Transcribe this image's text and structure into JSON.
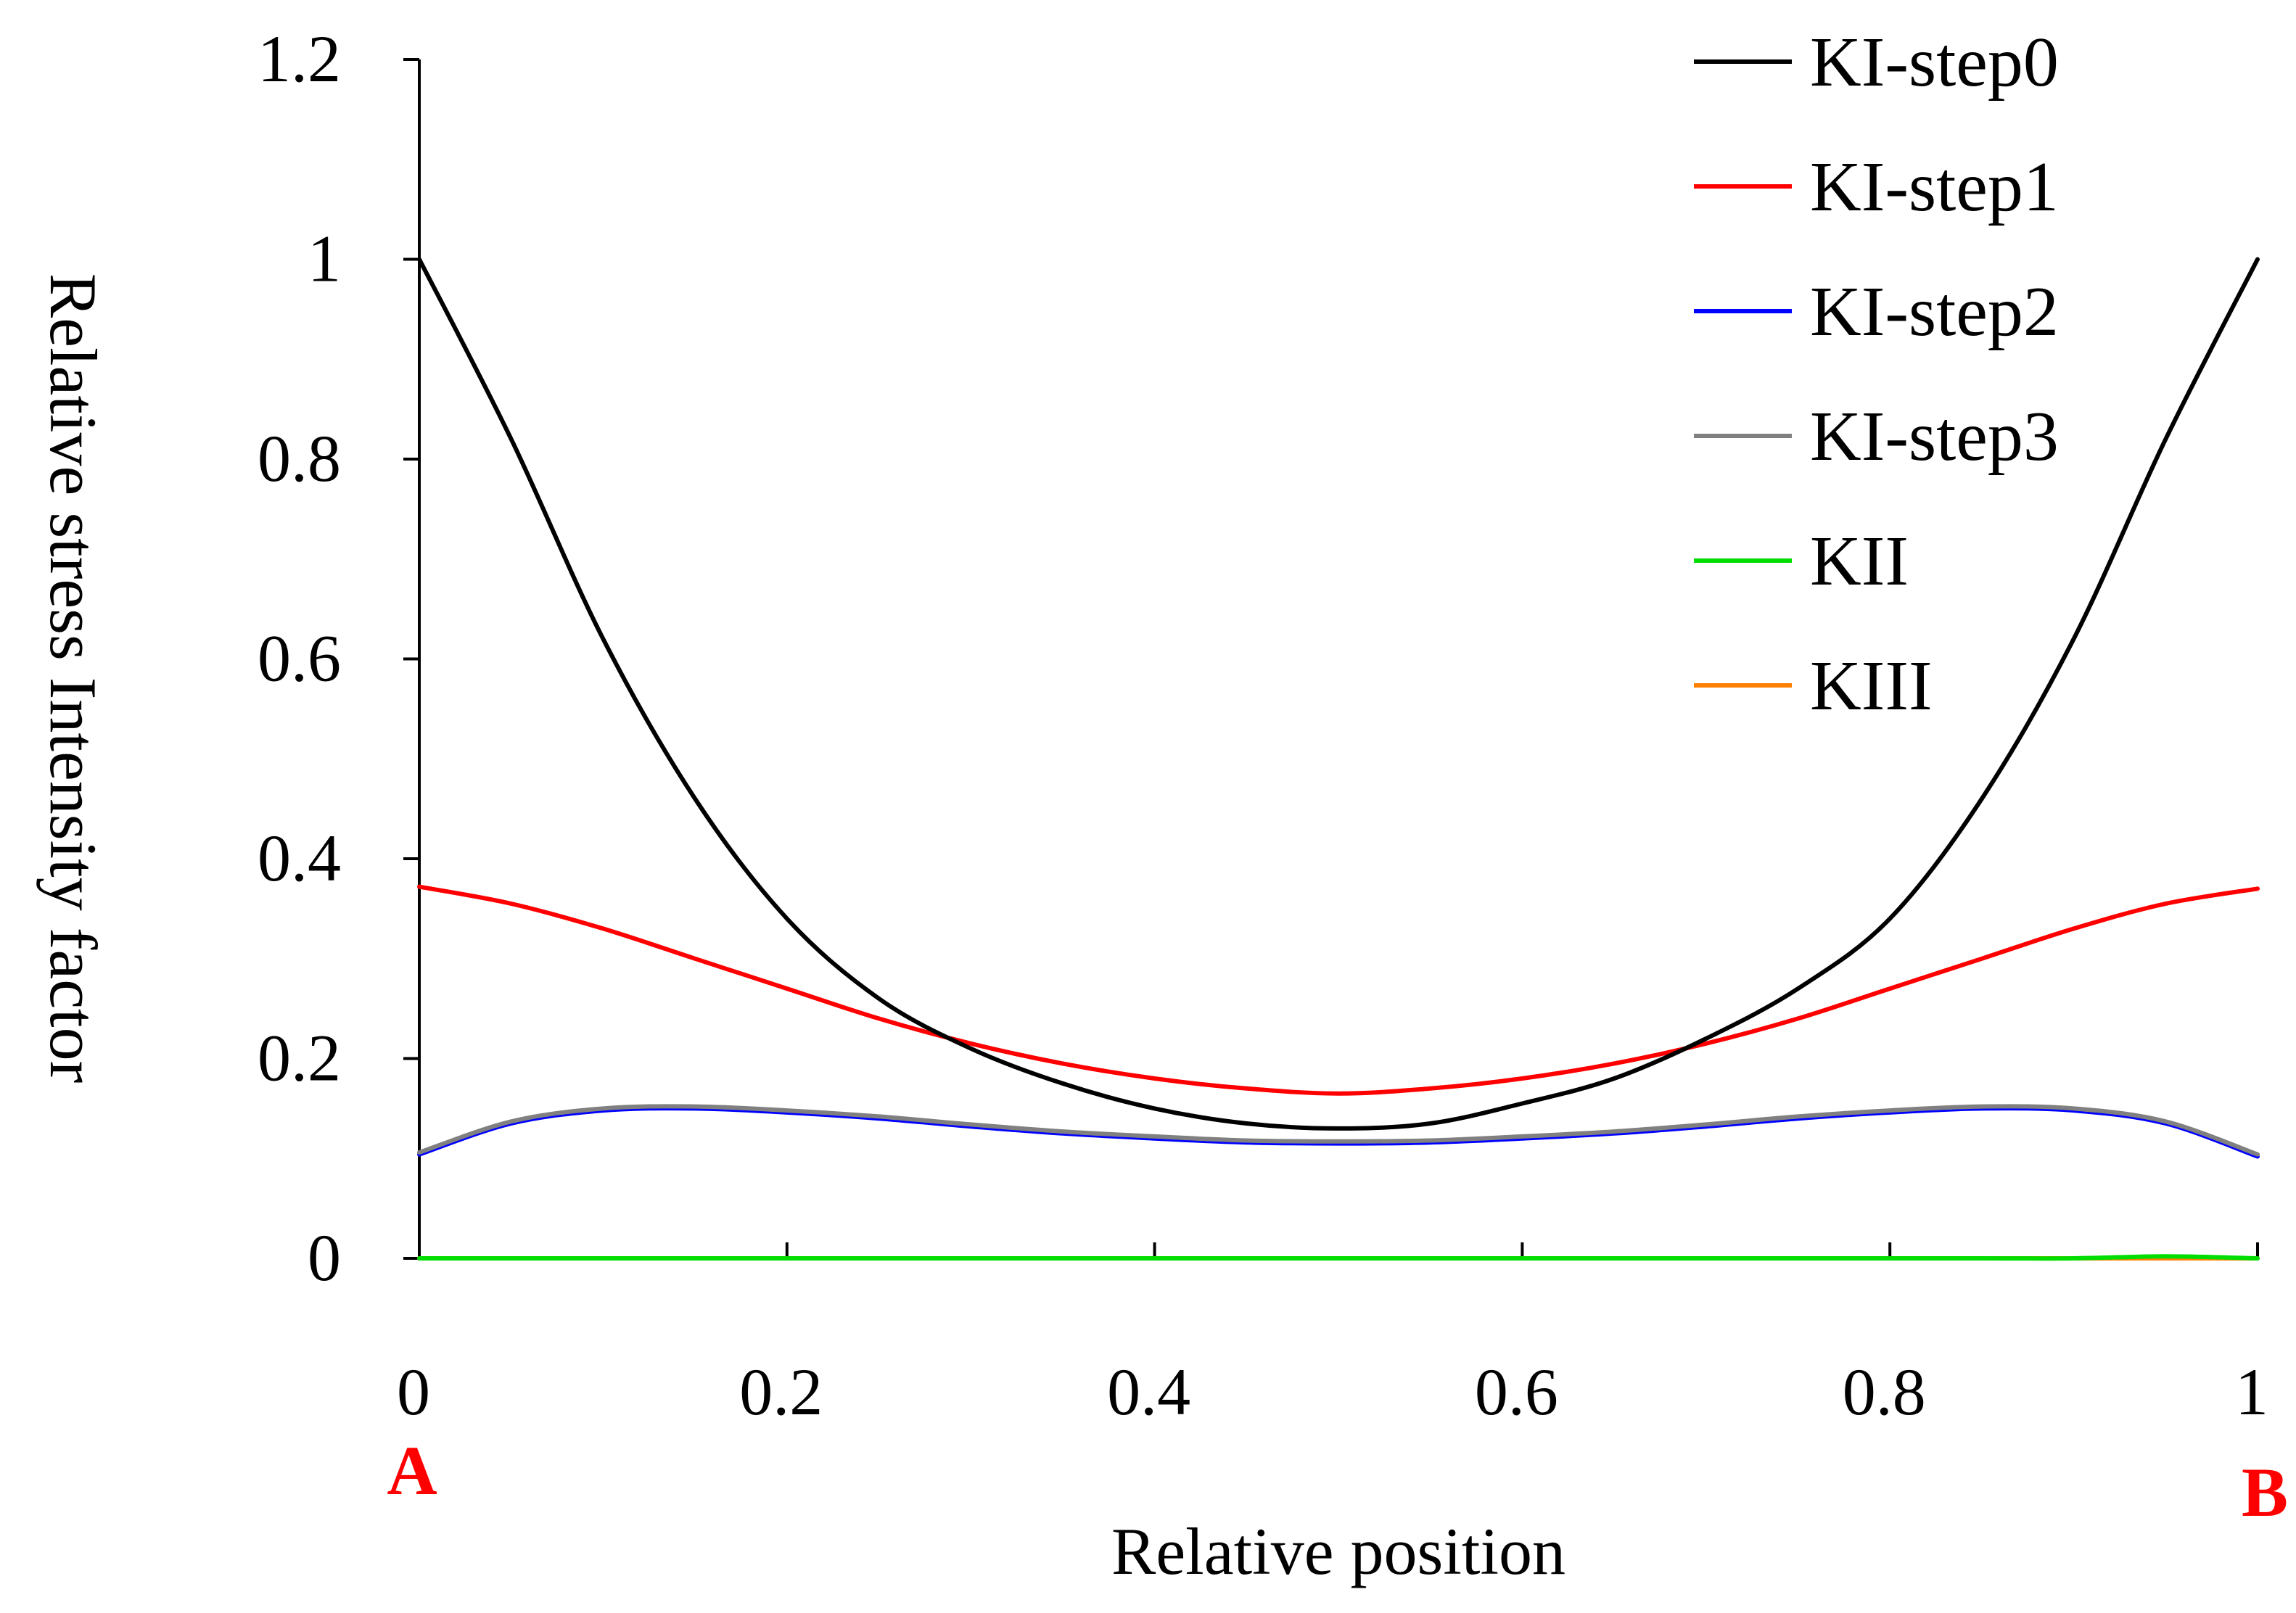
{
  "chart_data": {
    "type": "line",
    "title": "",
    "xlabel": "Relative position",
    "ylabel": "Relative stress Intensity factor",
    "xlim": [
      0,
      1
    ],
    "ylim": [
      0,
      1.2
    ],
    "xticks": [
      0,
      0.2,
      0.4,
      0.6,
      0.8,
      1
    ],
    "xtick_labels": [
      "0",
      "0.2",
      "0.4",
      "0.6",
      "0.8",
      "1"
    ],
    "yticks": [
      0,
      0.2,
      0.4,
      0.6,
      0.8,
      1,
      1.2
    ],
    "ytick_labels": [
      "0",
      "0.2",
      "0.4",
      "0.6",
      "0.8",
      "1",
      "1.2"
    ],
    "grid": false,
    "legend_position": "top-right",
    "annotations": [
      {
        "text": "A",
        "x": 0,
        "color": "#ff0000"
      },
      {
        "text": "B",
        "x": 1,
        "color": "#ff0000"
      }
    ],
    "x": [
      0,
      0.05,
      0.1,
      0.15,
      0.2,
      0.25,
      0.3,
      0.35,
      0.4,
      0.45,
      0.5,
      0.55,
      0.6,
      0.65,
      0.7,
      0.75,
      0.8,
      0.85,
      0.9,
      0.95,
      1
    ],
    "series": [
      {
        "name": "KI-step0",
        "color": "#000000",
        "values": [
          1.0,
          0.82,
          0.62,
          0.46,
          0.34,
          0.26,
          0.21,
          0.175,
          0.15,
          0.135,
          0.13,
          0.135,
          0.155,
          0.18,
          0.22,
          0.27,
          0.34,
          0.46,
          0.62,
          0.82,
          1.0
        ]
      },
      {
        "name": "KI-step1",
        "color": "#ff0000",
        "values": [
          0.372,
          0.355,
          0.33,
          0.3,
          0.27,
          0.24,
          0.215,
          0.195,
          0.18,
          0.17,
          0.165,
          0.17,
          0.18,
          0.195,
          0.215,
          0.24,
          0.27,
          0.3,
          0.33,
          0.355,
          0.37
        ]
      },
      {
        "name": "KI-step2",
        "color": "#0000ff",
        "values": [
          0.104,
          0.135,
          0.148,
          0.15,
          0.146,
          0.14,
          0.132,
          0.125,
          0.12,
          0.116,
          0.115,
          0.116,
          0.12,
          0.125,
          0.132,
          0.14,
          0.146,
          0.15,
          0.148,
          0.135,
          0.102
        ]
      },
      {
        "name": "KI-step3",
        "color": "#808080",
        "values": [
          0.106,
          0.137,
          0.15,
          0.152,
          0.148,
          0.142,
          0.134,
          0.127,
          0.122,
          0.118,
          0.117,
          0.118,
          0.122,
          0.127,
          0.134,
          0.142,
          0.148,
          0.152,
          0.15,
          0.137,
          0.104
        ]
      },
      {
        "name": "KII",
        "color": "#00dd00",
        "values": [
          0,
          0,
          0,
          0,
          0,
          0,
          0,
          0,
          0,
          0,
          0,
          0,
          0,
          0,
          0,
          0,
          0,
          0,
          0,
          0.002,
          0
        ]
      },
      {
        "name": "KIII",
        "color": "#ff7f00",
        "values": [
          0,
          0,
          0,
          0,
          0,
          0,
          0,
          0,
          0,
          0,
          0,
          0,
          0,
          0,
          0,
          0,
          0,
          0,
          0,
          0,
          0
        ]
      }
    ]
  }
}
